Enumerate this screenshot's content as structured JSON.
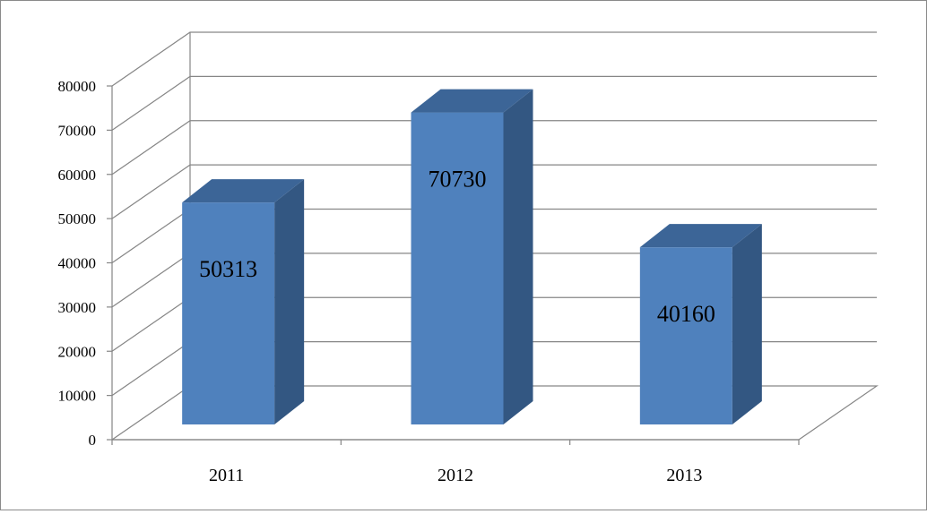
{
  "chart_data": {
    "type": "bar",
    "categories": [
      "2011",
      "2012",
      "2013"
    ],
    "values": [
      50313,
      70730,
      40160
    ],
    "data_labels": [
      "50313",
      "70730",
      "40160"
    ],
    "ylim": [
      0,
      80000
    ],
    "yticks": [
      0,
      10000,
      20000,
      30000,
      40000,
      50000,
      60000,
      70000,
      80000
    ],
    "ytick_labels": [
      "0",
      "10000",
      "20000",
      "30000",
      "40000",
      "50000",
      "60000",
      "70000",
      "80000"
    ],
    "grid": true,
    "legend": "none",
    "title": "",
    "xlabel": "",
    "ylabel": "",
    "colors": {
      "bar_front": "#4F81BD",
      "bar_side": "#335782",
      "bar_top": "#3C6597",
      "grid": "#868686",
      "axis": "#868686",
      "text": "#000000"
    }
  }
}
